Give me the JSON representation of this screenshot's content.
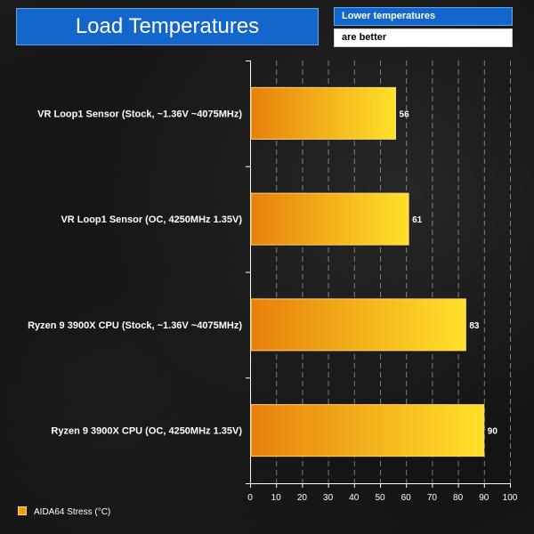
{
  "header": {
    "title": "Load Temperatures",
    "note_line1": "Lower temperatures",
    "note_line2": "are better"
  },
  "legend": {
    "label": "AIDA64 Stress (°C)"
  },
  "colors": {
    "bar_start": "#e8800c",
    "bar_end": "#ffe12a",
    "bar_border": "#ffd27a",
    "title_bg": "#1266cc",
    "grid": "#d0d0d0"
  },
  "chart_data": {
    "type": "bar",
    "orientation": "horizontal",
    "categories": [
      "VR Loop1 Sensor (Stock, ~1.36V ~4075MHz)",
      "VR Loop1 Sensor (OC, 4250MHz 1.35V)",
      "Ryzen 9 3900X CPU (Stock, ~1.36V ~4075MHz)",
      "Ryzen 9 3900X CPU (OC, 4250MHz 1.35V)"
    ],
    "series": [
      {
        "name": "AIDA64 Stress (°C)",
        "values": [
          56,
          61,
          83,
          90
        ]
      }
    ],
    "title": "Load Temperatures",
    "xlim": [
      0,
      100
    ],
    "xticks": [
      0,
      10,
      20,
      30,
      40,
      50,
      60,
      70,
      80,
      90,
      100
    ],
    "grid": "vertical dashed",
    "legend_position": "bottom-left"
  }
}
